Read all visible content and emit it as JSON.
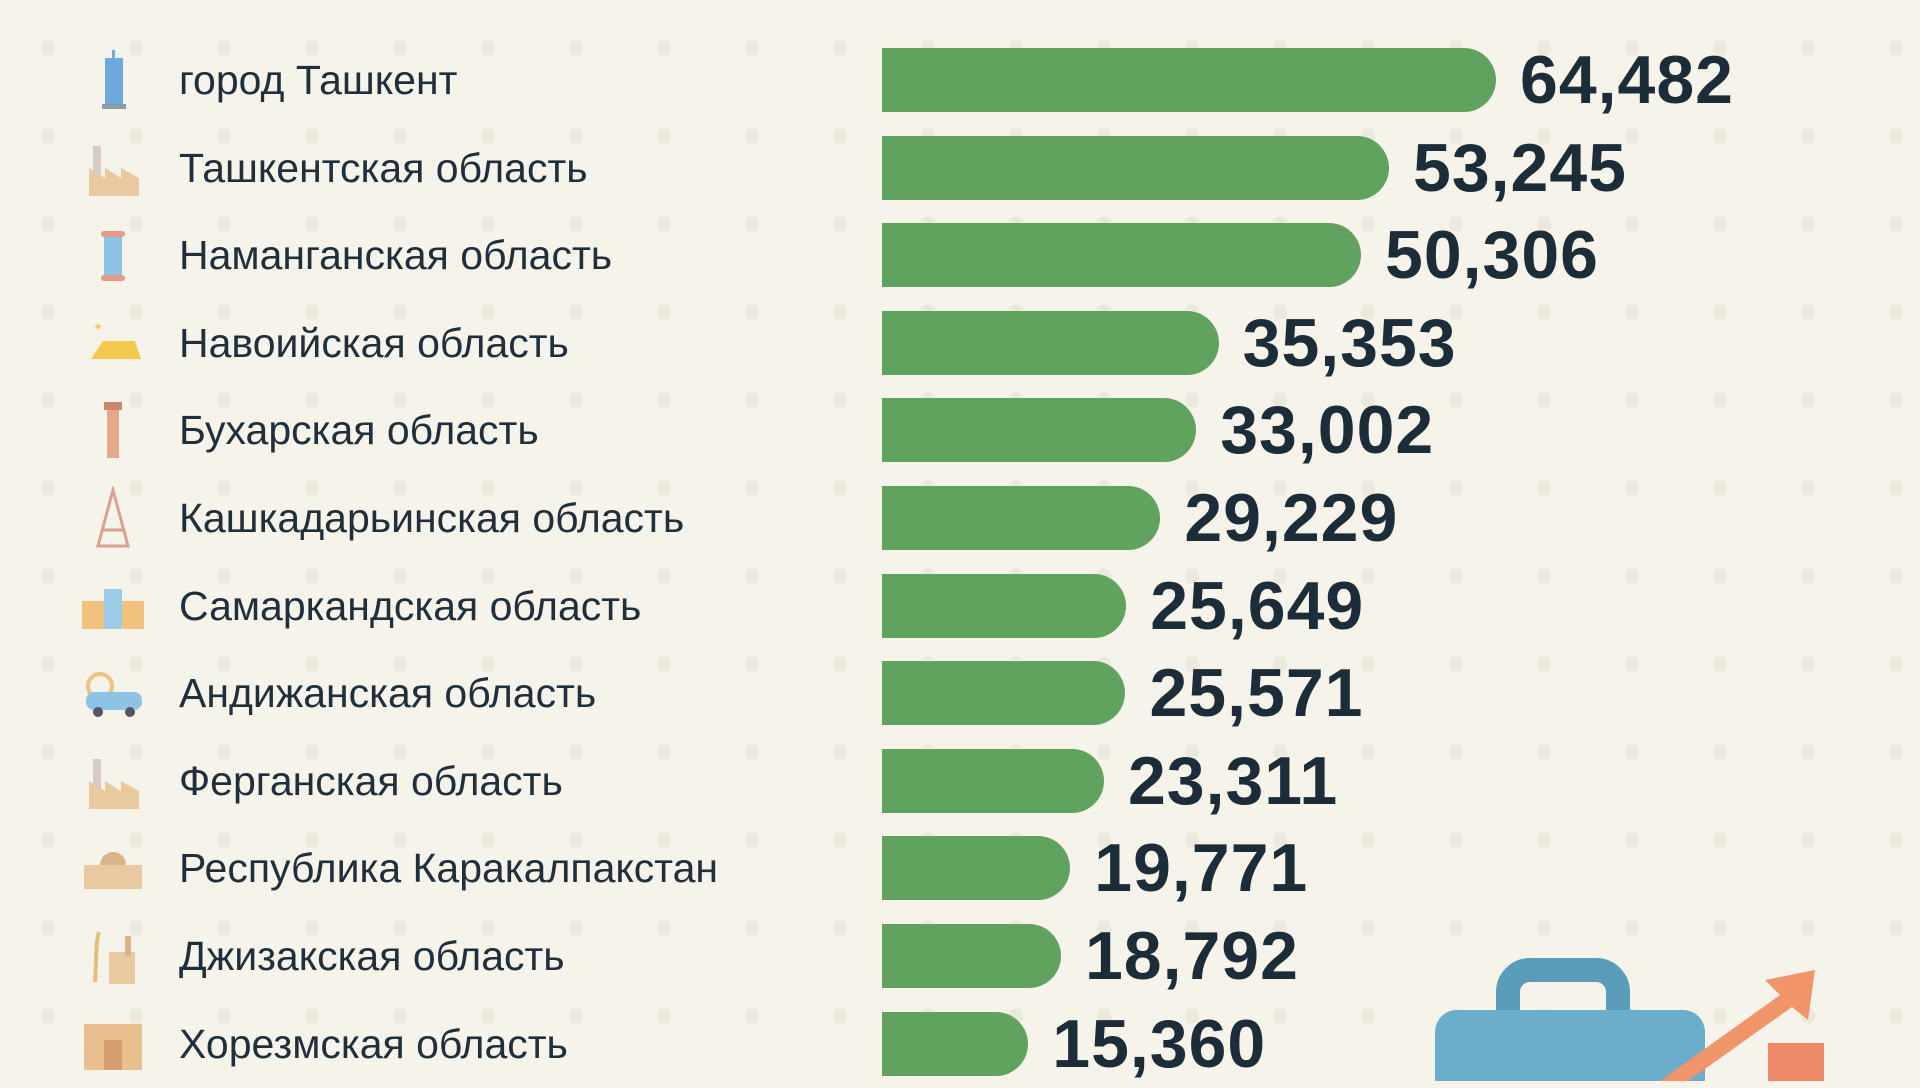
{
  "chart_data": {
    "type": "bar",
    "orientation": "horizontal",
    "categories": [
      "город Ташкент",
      "Ташкентская область",
      "Наманганская область",
      "Навоийская область",
      "Бухарская область",
      "Кашкадарьинская область",
      "Самаркандская область",
      "Андижанская область",
      "Ферганская область",
      "Республика Каракалпакстан",
      "Джизакская область",
      "Хорезмская область"
    ],
    "values": [
      64482,
      53245,
      50306,
      35353,
      33002,
      29229,
      25649,
      25571,
      23311,
      19771,
      18792,
      15360
    ],
    "value_labels": [
      "64,482",
      "53,245",
      "50,306",
      "35,353",
      "33,002",
      "29,229",
      "25,649",
      "25,571",
      "23,311",
      "19,771",
      "18,792",
      "15,360"
    ],
    "icons": [
      "skyscraper-icon",
      "factory-icon",
      "thread-spool-icon",
      "gold-bar-icon",
      "minaret-icon",
      "oil-derrick-icon",
      "registan-icon",
      "car-icon",
      "factory-icon",
      "fortress-icon",
      "wheat-factory-icon",
      "city-gate-icon"
    ],
    "bar_color": "#5fa35f",
    "xlim": [
      0,
      64482
    ]
  }
}
